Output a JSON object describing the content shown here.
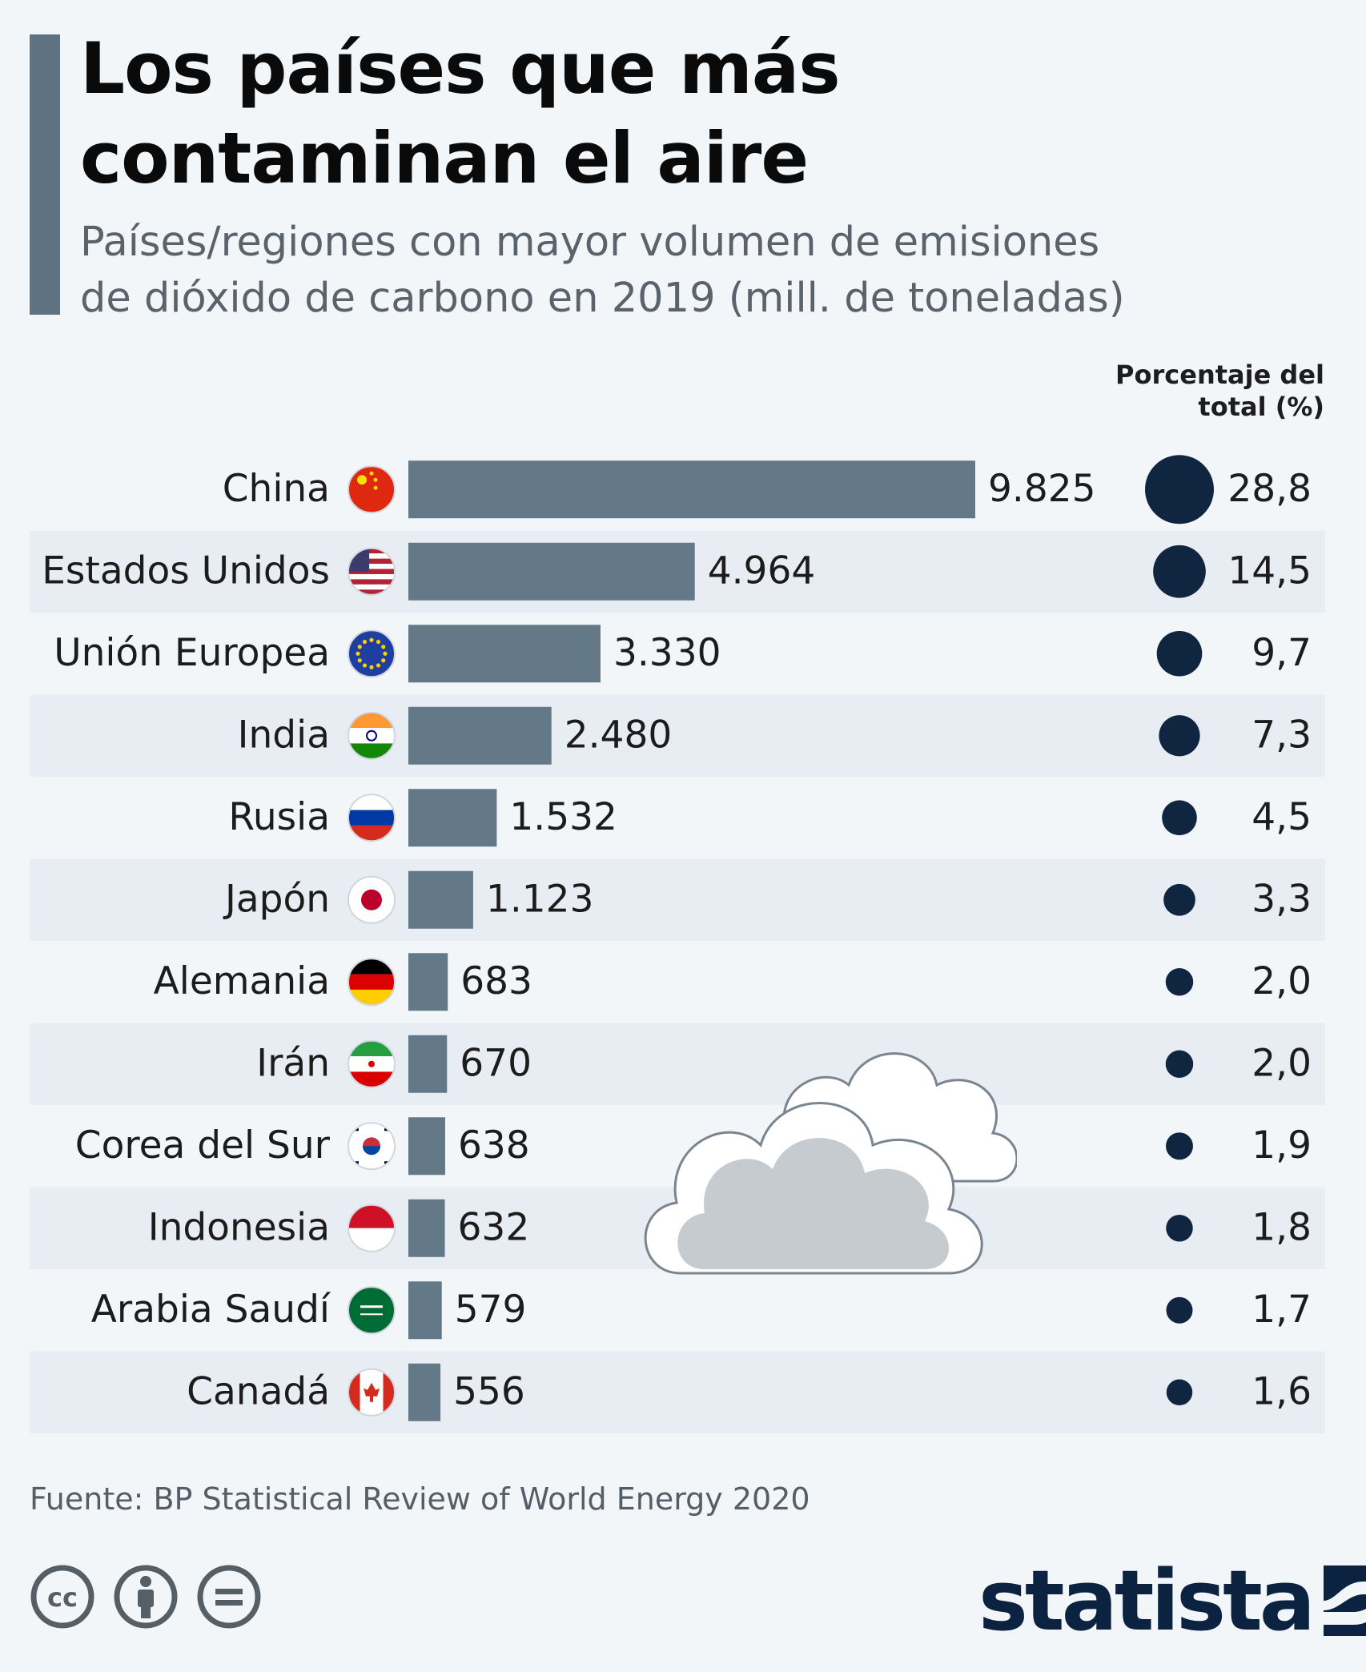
{
  "title": "Los países que más contaminan el aire",
  "title_lines": [
    "Los países que más",
    "contaminan el aire"
  ],
  "subtitle_lines": [
    "Países/regiones con mayor volumen de emisiones",
    "de dióxido de carbono en 2019 (mill. de toneladas)"
  ],
  "pct_header_lines": [
    "Porcentaje del",
    "total (%)"
  ],
  "source": "Fuente: BP Statistical Review of World Energy 2020",
  "logo": "statista",
  "license_icons": [
    "creative-commons-icon",
    "attribution-icon",
    "no-derivatives-icon"
  ],
  "colors": {
    "bar": "#647988",
    "dot": "#0f2540",
    "row_alt": "#e8edf3",
    "background": "#f3f6f9",
    "accent": "#5f7282"
  },
  "chart_data": {
    "type": "bar",
    "orientation": "horizontal",
    "categories": [
      "China",
      "Estados Unidos",
      "Unión Europea",
      "India",
      "Rusia",
      "Japón",
      "Alemania",
      "Irán",
      "Corea del Sur",
      "Indonesia",
      "Arabia Saudí",
      "Canadá"
    ],
    "flags": [
      "china-flag-icon",
      "usa-flag-icon",
      "eu-flag-icon",
      "india-flag-icon",
      "russia-flag-icon",
      "japan-flag-icon",
      "germany-flag-icon",
      "iran-flag-icon",
      "south-korea-flag-icon",
      "indonesia-flag-icon",
      "saudi-arabia-flag-icon",
      "canada-flag-icon"
    ],
    "values": [
      9825,
      4964,
      3330,
      2480,
      1532,
      1123,
      683,
      670,
      638,
      632,
      579,
      556
    ],
    "value_labels": [
      "9.825",
      "4.964",
      "3.330",
      "2.480",
      "1.532",
      "1.123",
      "683",
      "670",
      "638",
      "632",
      "579",
      "556"
    ],
    "share_percent": [
      28.8,
      14.5,
      9.7,
      7.3,
      4.5,
      3.3,
      2.0,
      2.0,
      1.9,
      1.8,
      1.7,
      1.6
    ],
    "share_labels": [
      "28,8",
      "14,5",
      "9,7",
      "7,3",
      "4,5",
      "3,3",
      "2,0",
      "2,0",
      "1,9",
      "1,8",
      "1,7",
      "1,6"
    ],
    "xlim": [
      0,
      9825
    ],
    "grid": false
  }
}
